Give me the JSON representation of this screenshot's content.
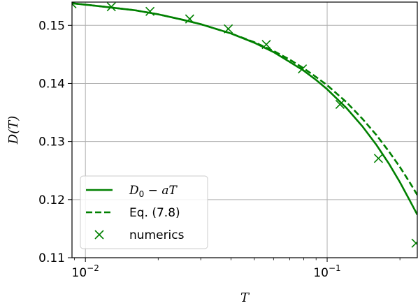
{
  "chart_data": {
    "type": "line",
    "xlabel": "T",
    "ylabel": "D(T)",
    "xscale": "log",
    "xlim": [
      0.0088,
      0.236
    ],
    "ylim": [
      0.11,
      0.154
    ],
    "grid": true,
    "legend_position": "lower-left",
    "color": "#008000",
    "x_ticks": [
      {
        "value": 0.01,
        "base": "10",
        "exp": "−2"
      },
      {
        "value": 0.1,
        "base": "10",
        "exp": "−1"
      }
    ],
    "y_ticks": [
      {
        "value": 0.11,
        "label": "0.11"
      },
      {
        "value": 0.12,
        "label": "0.12"
      },
      {
        "value": 0.13,
        "label": "0.13"
      },
      {
        "value": 0.14,
        "label": "0.14"
      },
      {
        "value": 0.15,
        "label": "0.15"
      }
    ],
    "series": [
      {
        "name": "D₀ − aT",
        "style": "solid",
        "x": [
          0.0088,
          0.012,
          0.016,
          0.02,
          0.025,
          0.03,
          0.04,
          0.05,
          0.06,
          0.07,
          0.08,
          0.09,
          0.1,
          0.12,
          0.14,
          0.16,
          0.18,
          0.2,
          0.22,
          0.236
        ],
        "y": [
          0.1538,
          0.1532,
          0.1526,
          0.1519,
          0.151,
          0.1502,
          0.1486,
          0.147,
          0.1454,
          0.1437,
          0.1422,
          0.1406,
          0.139,
          0.1358,
          0.1326,
          0.1294,
          0.1262,
          0.123,
          0.1198,
          0.1174
        ]
      },
      {
        "name": "Eq. (7.8)",
        "style": "dashed",
        "x": [
          0.0088,
          0.012,
          0.016,
          0.02,
          0.025,
          0.03,
          0.04,
          0.05,
          0.06,
          0.07,
          0.08,
          0.09,
          0.1,
          0.12,
          0.14,
          0.16,
          0.18,
          0.2,
          0.22,
          0.236
        ],
        "y": [
          0.1538,
          0.1532,
          0.1526,
          0.1519,
          0.151,
          0.1502,
          0.1486,
          0.1471,
          0.1456,
          0.1441,
          0.1426,
          0.1411,
          0.1397,
          0.1368,
          0.1339,
          0.1311,
          0.1283,
          0.1256,
          0.1229,
          0.1208
        ]
      },
      {
        "name": "numerics",
        "style": "markers",
        "x": [
          0.0088,
          0.0128,
          0.0185,
          0.027,
          0.039,
          0.056,
          0.079,
          0.113,
          0.163,
          0.233
        ],
        "y": [
          0.1537,
          0.1532,
          0.1524,
          0.1511,
          0.1494,
          0.1467,
          0.1425,
          0.1364,
          0.1271,
          0.1125
        ]
      }
    ],
    "legend": [
      {
        "label_main": "D",
        "label_sub": "0",
        "label_rest": " − aT",
        "style": "solid"
      },
      {
        "label": "Eq. (7.8)",
        "style": "dashed"
      },
      {
        "label": "numerics",
        "style": "markers"
      }
    ]
  }
}
